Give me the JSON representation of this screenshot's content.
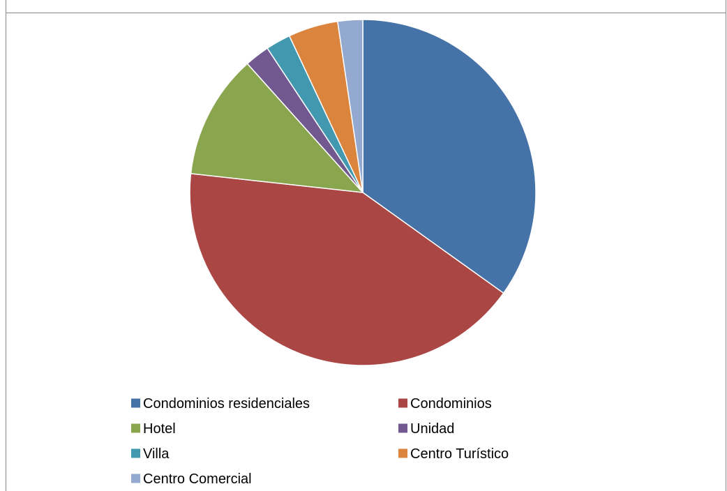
{
  "chart_data": {
    "type": "pie",
    "title": "",
    "categories": [
      "Condominios residenciales",
      "Condominios",
      "Hotel",
      "Unidad",
      "Villa",
      "Centro Turístico",
      "Centro Comercial"
    ],
    "values": [
      15,
      18,
      5,
      1,
      1,
      2,
      1
    ],
    "colors": [
      "#4572A7",
      "#AA4643",
      "#89A54E",
      "#71588F",
      "#4198AF",
      "#DB843D",
      "#93A9CF"
    ],
    "legend_position": "bottom",
    "start_angle_deg": 0,
    "direction": "clockwise"
  }
}
